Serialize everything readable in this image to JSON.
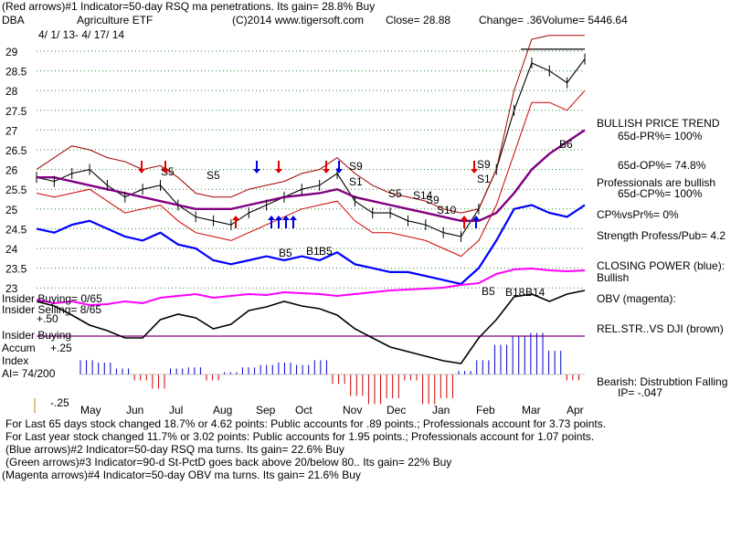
{
  "header": {
    "line1": "(Red arrows)#1 Indicator=50-day RSQ ma penetrations. Its gain= 28.8% Buy",
    "symbol": "DBA",
    "name": "Agriculture ETF",
    "copyright": "(C)2014 www.tigersoft.com",
    "close": "Close= 28.88",
    "change": "Change= .36",
    "volume": "Volume= 5446.64",
    "date_range": "4/ 1/ 13- 4/ 17/ 14"
  },
  "chart_data": {
    "type": "line",
    "price_axis": {
      "ticks": [
        "29",
        "28.5",
        "28",
        "27.5",
        "27",
        "26.5",
        "26",
        "25.5",
        "25",
        "24.5",
        "24",
        "23.5",
        "23"
      ],
      "range": [
        23,
        29
      ]
    },
    "months": [
      "May",
      "Jun",
      "Jul",
      "Aug",
      "Sep",
      "Oct",
      "Nov",
      "Dec",
      "Jan",
      "Feb",
      "Mar",
      "Apr"
    ],
    "series": [
      {
        "values": [
          25.8,
          25.7,
          25.9,
          26.0,
          25.6,
          25.3,
          25.5,
          25.6,
          25.1,
          24.8,
          24.7,
          24.6,
          24.9,
          25.1,
          25.3,
          25.5,
          25.6,
          25.9,
          25.2,
          24.9,
          24.9,
          24.7,
          24.6,
          24.4,
          24.3,
          25.0,
          26.0,
          27.5,
          28.7,
          28.5,
          28.2,
          28.8
        ]
      },
      {
        "values": [
          24.5,
          24.4,
          24.6,
          24.7,
          24.5,
          24.3,
          24.2,
          24.4,
          24.1,
          24.0,
          23.7,
          23.6,
          23.7,
          23.8,
          23.7,
          23.8,
          23.7,
          23.9,
          23.6,
          23.5,
          23.4,
          23.4,
          23.3,
          23.2,
          23.1,
          23.5,
          24.2,
          25.0,
          25.1,
          24.9,
          24.8,
          25.1
        ]
      },
      {
        "values": [
          25.8,
          25.8,
          25.7,
          25.6,
          25.5,
          25.4,
          25.3,
          25.2,
          25.1,
          25.0,
          25.0,
          25.0,
          25.1,
          25.2,
          25.3,
          25.35,
          25.4,
          25.5,
          25.3,
          25.2,
          25.1,
          25.0,
          24.9,
          24.8,
          24.7,
          24.7,
          24.9,
          25.4,
          26.0,
          26.4,
          26.7,
          27.0
        ]
      },
      {
        "values": [
          26.0,
          26.3,
          26.6,
          26.5,
          26.3,
          26.2,
          26.0,
          26.1,
          25.8,
          25.4,
          25.3,
          25.3,
          25.5,
          25.6,
          25.7,
          25.9,
          26.0,
          26.3,
          25.9,
          25.6,
          25.4,
          25.3,
          25.2,
          25.0,
          24.9,
          25.0,
          26.0,
          28.0,
          29.3,
          29.4,
          29.4,
          29.4
        ]
      },
      {
        "values": [
          25.4,
          25.3,
          25.4,
          25.5,
          25.2,
          24.9,
          25.0,
          25.1,
          24.7,
          24.4,
          24.3,
          24.2,
          24.4,
          24.6,
          24.8,
          25.0,
          25.1,
          25.2,
          24.7,
          24.4,
          24.4,
          24.3,
          24.2,
          24.0,
          23.8,
          24.2,
          25.1,
          26.4,
          27.7,
          27.7,
          27.5,
          28.0
        ]
      }
    ],
    "signals": [
      "S5",
      "S5",
      "S9",
      "S1",
      "S5",
      "S14",
      "S9",
      "S10",
      "S9",
      "S1",
      "B5",
      "B1",
      "B5",
      "B6",
      "B5",
      "B18",
      "B14"
    ],
    "right_panel": [
      "BULLISH PRICE TREND",
      "65d-PR%= 100%",
      "65d-OP%= 74.8%",
      "Professionals are bullish",
      "65d-CP%= 100%",
      "CP%vsPr%= 0%",
      "Strength Profess/Pub= 4.2",
      "CLOSING POWER (blue):",
      "Bullish",
      "OBV (magenta):",
      "REL.STR..VS DJI (brown)",
      "Bearish: Distrubtion Falling",
      "IP= -.047"
    ],
    "left_labels": {
      "insider_buying": "Insider Buying= 0/65",
      "insider_selling": "Insider Selling= 8/65",
      "plus50": "+.50",
      "insider_buying2": "Insider Buying",
      "accum": "Accum",
      "plus25": "+.25",
      "index": "Index",
      "ai": "AI= 74/200",
      "minus25": "-.25"
    },
    "ai_values": [
      0.12,
      0.1,
      0.05,
      -0.05,
      -0.12,
      0.05,
      0.06,
      -0.05,
      0.02,
      0.06,
      0.08,
      0.1,
      0.08,
      0.12,
      -0.08,
      -0.18,
      -0.25,
      -0.2,
      -0.05,
      -0.25,
      -0.2,
      0.03,
      0.12,
      0.25,
      0.32,
      0.35,
      0.2,
      -0.05
    ]
  },
  "footer": [
    "For Last 65 days stock changed  18.7% or  4.62 points:  Public accounts for  .89 points.;  Professionals account for  3.73 points.",
    "For Last year stock changed  11.7% or  3.02 points:  Public accounts for  1.95 points.;  Professionals account for  1.07 points.",
    "(Blue arrows)#2 Indicator=50-day RSQ ma turns. Its gain= 22.6% Buy",
    "(Green arrows)#3 Indicator=90-d St-PctD goes back above 20/below 80.. Its gain= 22% Buy",
    "(Magenta arrows)#4 Indicator=50-day OBV ma turns. Its gain= 21.6% Buy"
  ]
}
